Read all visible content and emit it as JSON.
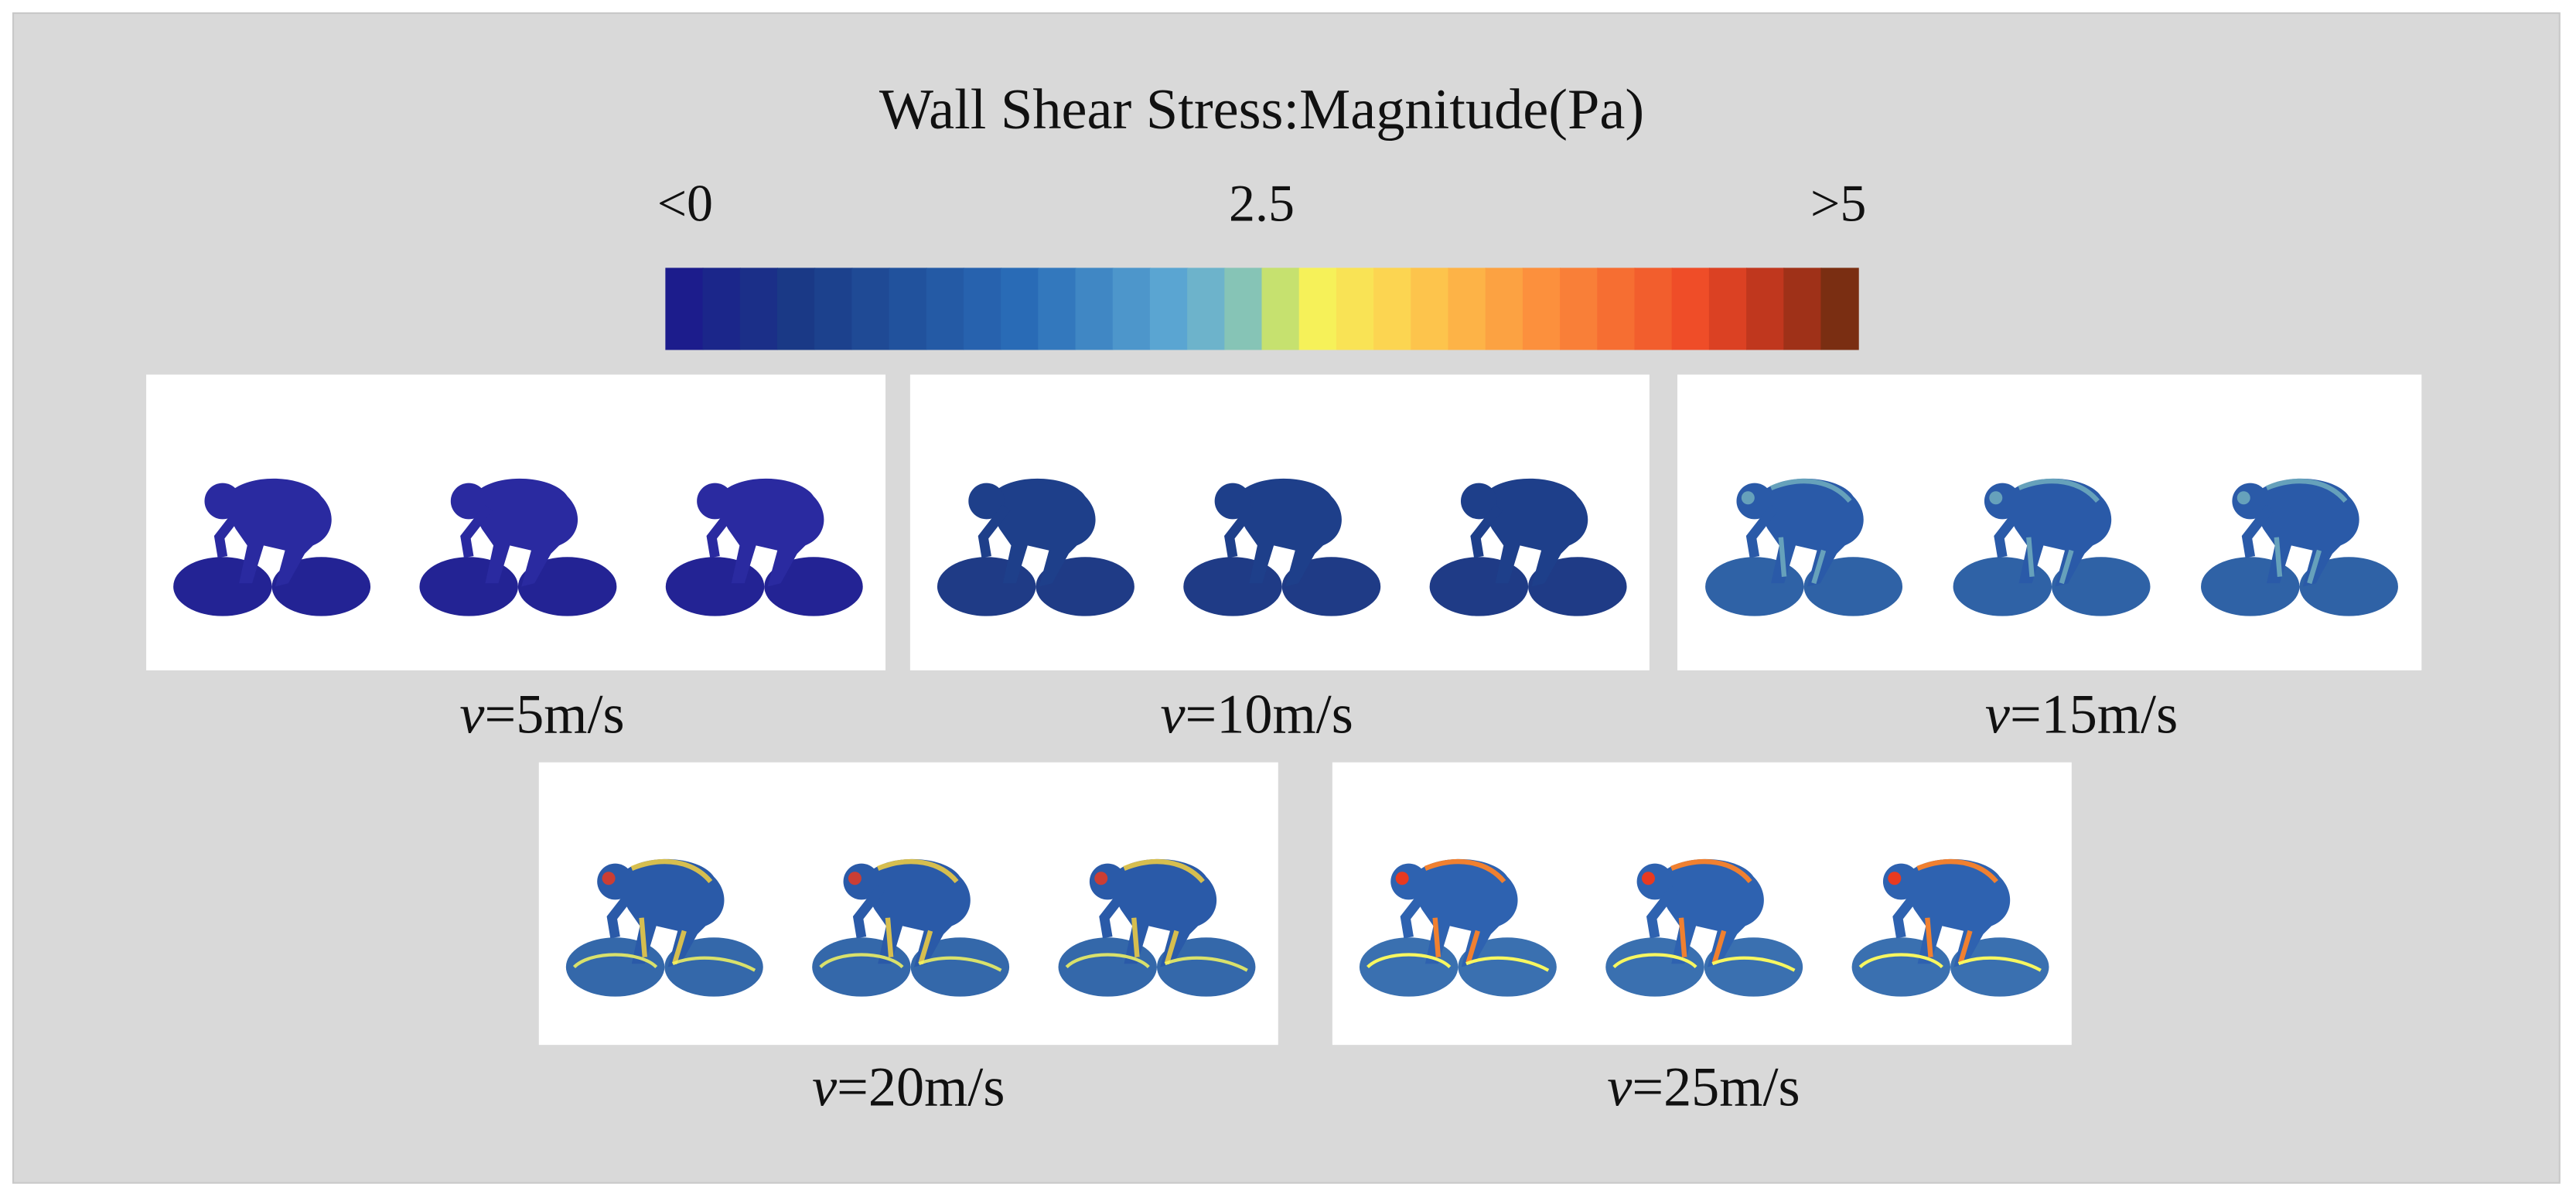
{
  "title": "Wall Shear Stress:Magnitude(Pa)",
  "colorbar": {
    "range": [
      0,
      5
    ],
    "ticks": [
      {
        "value": 0,
        "label": "<0"
      },
      2.5,
      {
        "value": 5,
        "label": ">5"
      }
    ]
  },
  "panels": [
    {
      "variable": "v",
      "speed": "=5m/s"
    },
    {
      "variable": "v",
      "speed": "=10m/s"
    },
    {
      "variable": "v",
      "speed": "=15m/s"
    },
    {
      "variable": "v",
      "speed": "=20m/s"
    },
    {
      "variable": "v",
      "speed": "=25m/s"
    }
  ]
}
